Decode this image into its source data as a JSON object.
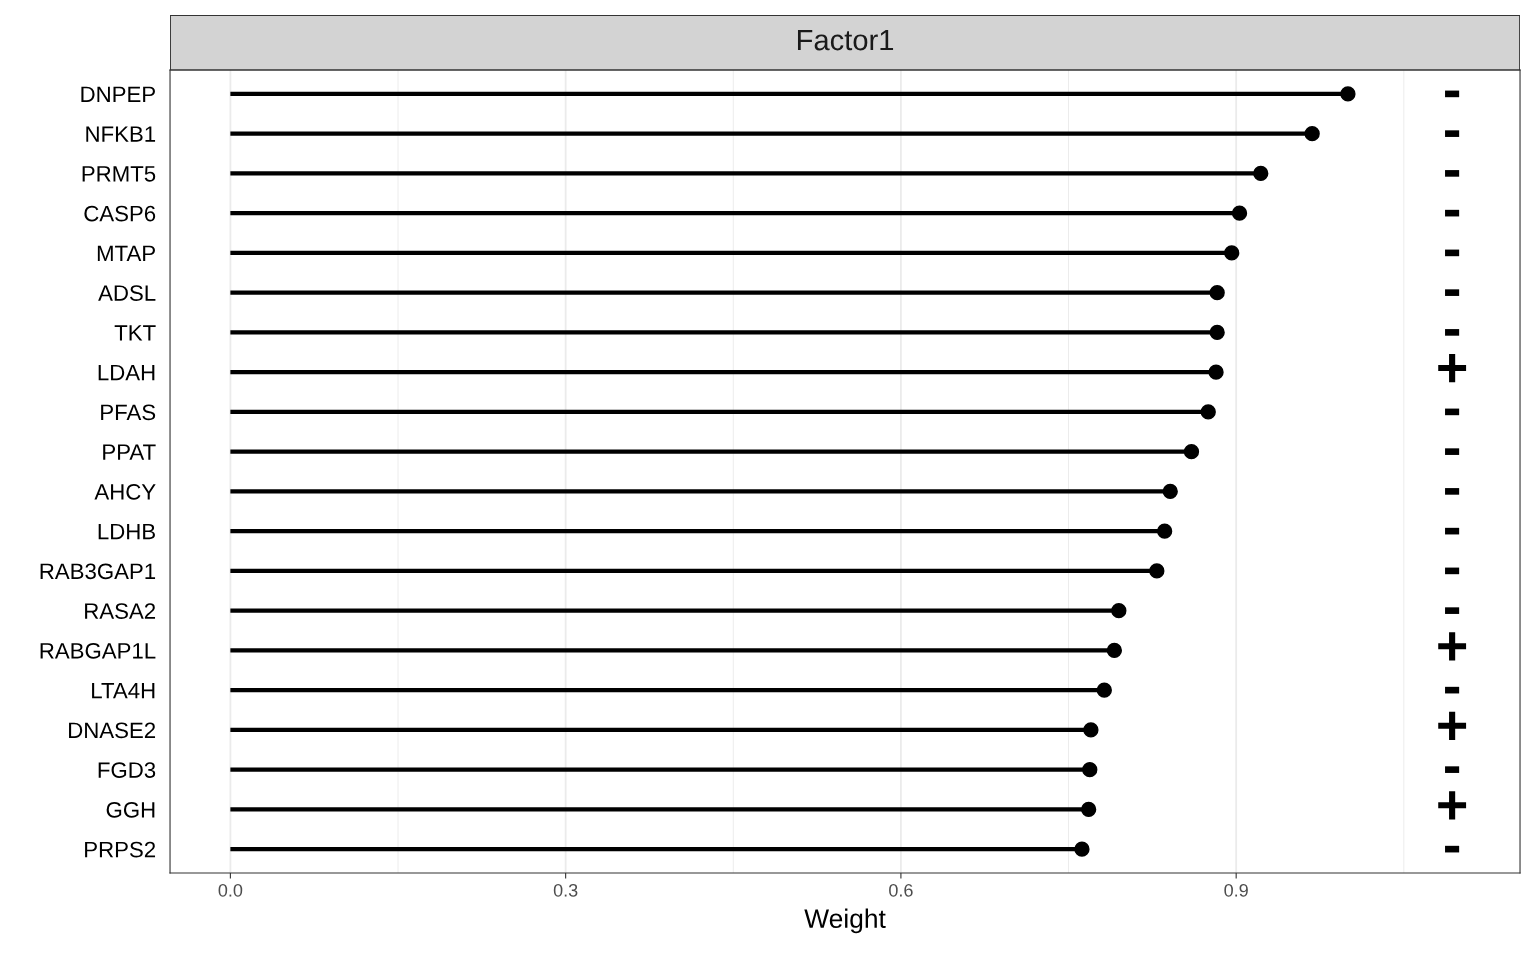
{
  "chart_data": {
    "type": "lollipop",
    "orientation": "horizontal",
    "title": "Factor1",
    "xlabel": "Weight",
    "categories": [
      "DNPEP",
      "NFKB1",
      "PRMT5",
      "CASP6",
      "MTAP",
      "ADSL",
      "TKT",
      "LDAH",
      "PFAS",
      "PPAT",
      "AHCY",
      "LDHB",
      "RAB3GAP1",
      "RASA2",
      "RABGAP1L",
      "LTA4H",
      "DNASE2",
      "FGD3",
      "GGH",
      "PRPS2"
    ],
    "values": [
      1.0,
      0.968,
      0.922,
      0.903,
      0.896,
      0.883,
      0.883,
      0.882,
      0.875,
      0.86,
      0.841,
      0.836,
      0.829,
      0.795,
      0.791,
      0.782,
      0.77,
      0.769,
      0.768,
      0.762
    ],
    "annotations": [
      "-",
      "-",
      "-",
      "-",
      "-",
      "-",
      "-",
      "+",
      "-",
      "-",
      "-",
      "-",
      "-",
      "-",
      "+",
      "-",
      "+",
      "-",
      "+",
      "-"
    ],
    "color": "#000000",
    "marker": "circle",
    "xlim": [
      -0.054,
      1.154
    ],
    "xticks": [
      {
        "value": 0,
        "label": "0.0"
      },
      0.3,
      0.6,
      0.9
    ],
    "grid": "x"
  }
}
